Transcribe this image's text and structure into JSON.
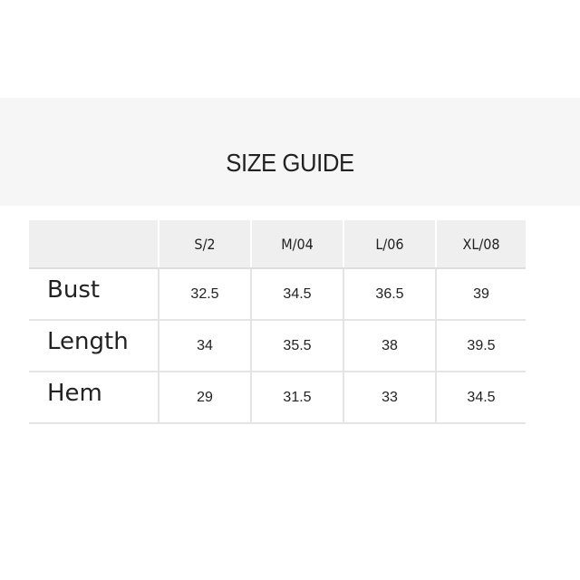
{
  "title": "SIZE GUIDE",
  "table": {
    "headers": [
      "",
      "S/2",
      "M/04",
      "L/06",
      "XL/08"
    ],
    "rows": [
      {
        "label": "Bust",
        "values": [
          "32.5",
          "34.5",
          "36.5",
          "39"
        ]
      },
      {
        "label": "Length",
        "values": [
          "34",
          "35.5",
          "38",
          "39.5"
        ]
      },
      {
        "label": "Hem",
        "values": [
          "29",
          "31.5",
          "33",
          "34.5"
        ]
      }
    ]
  }
}
